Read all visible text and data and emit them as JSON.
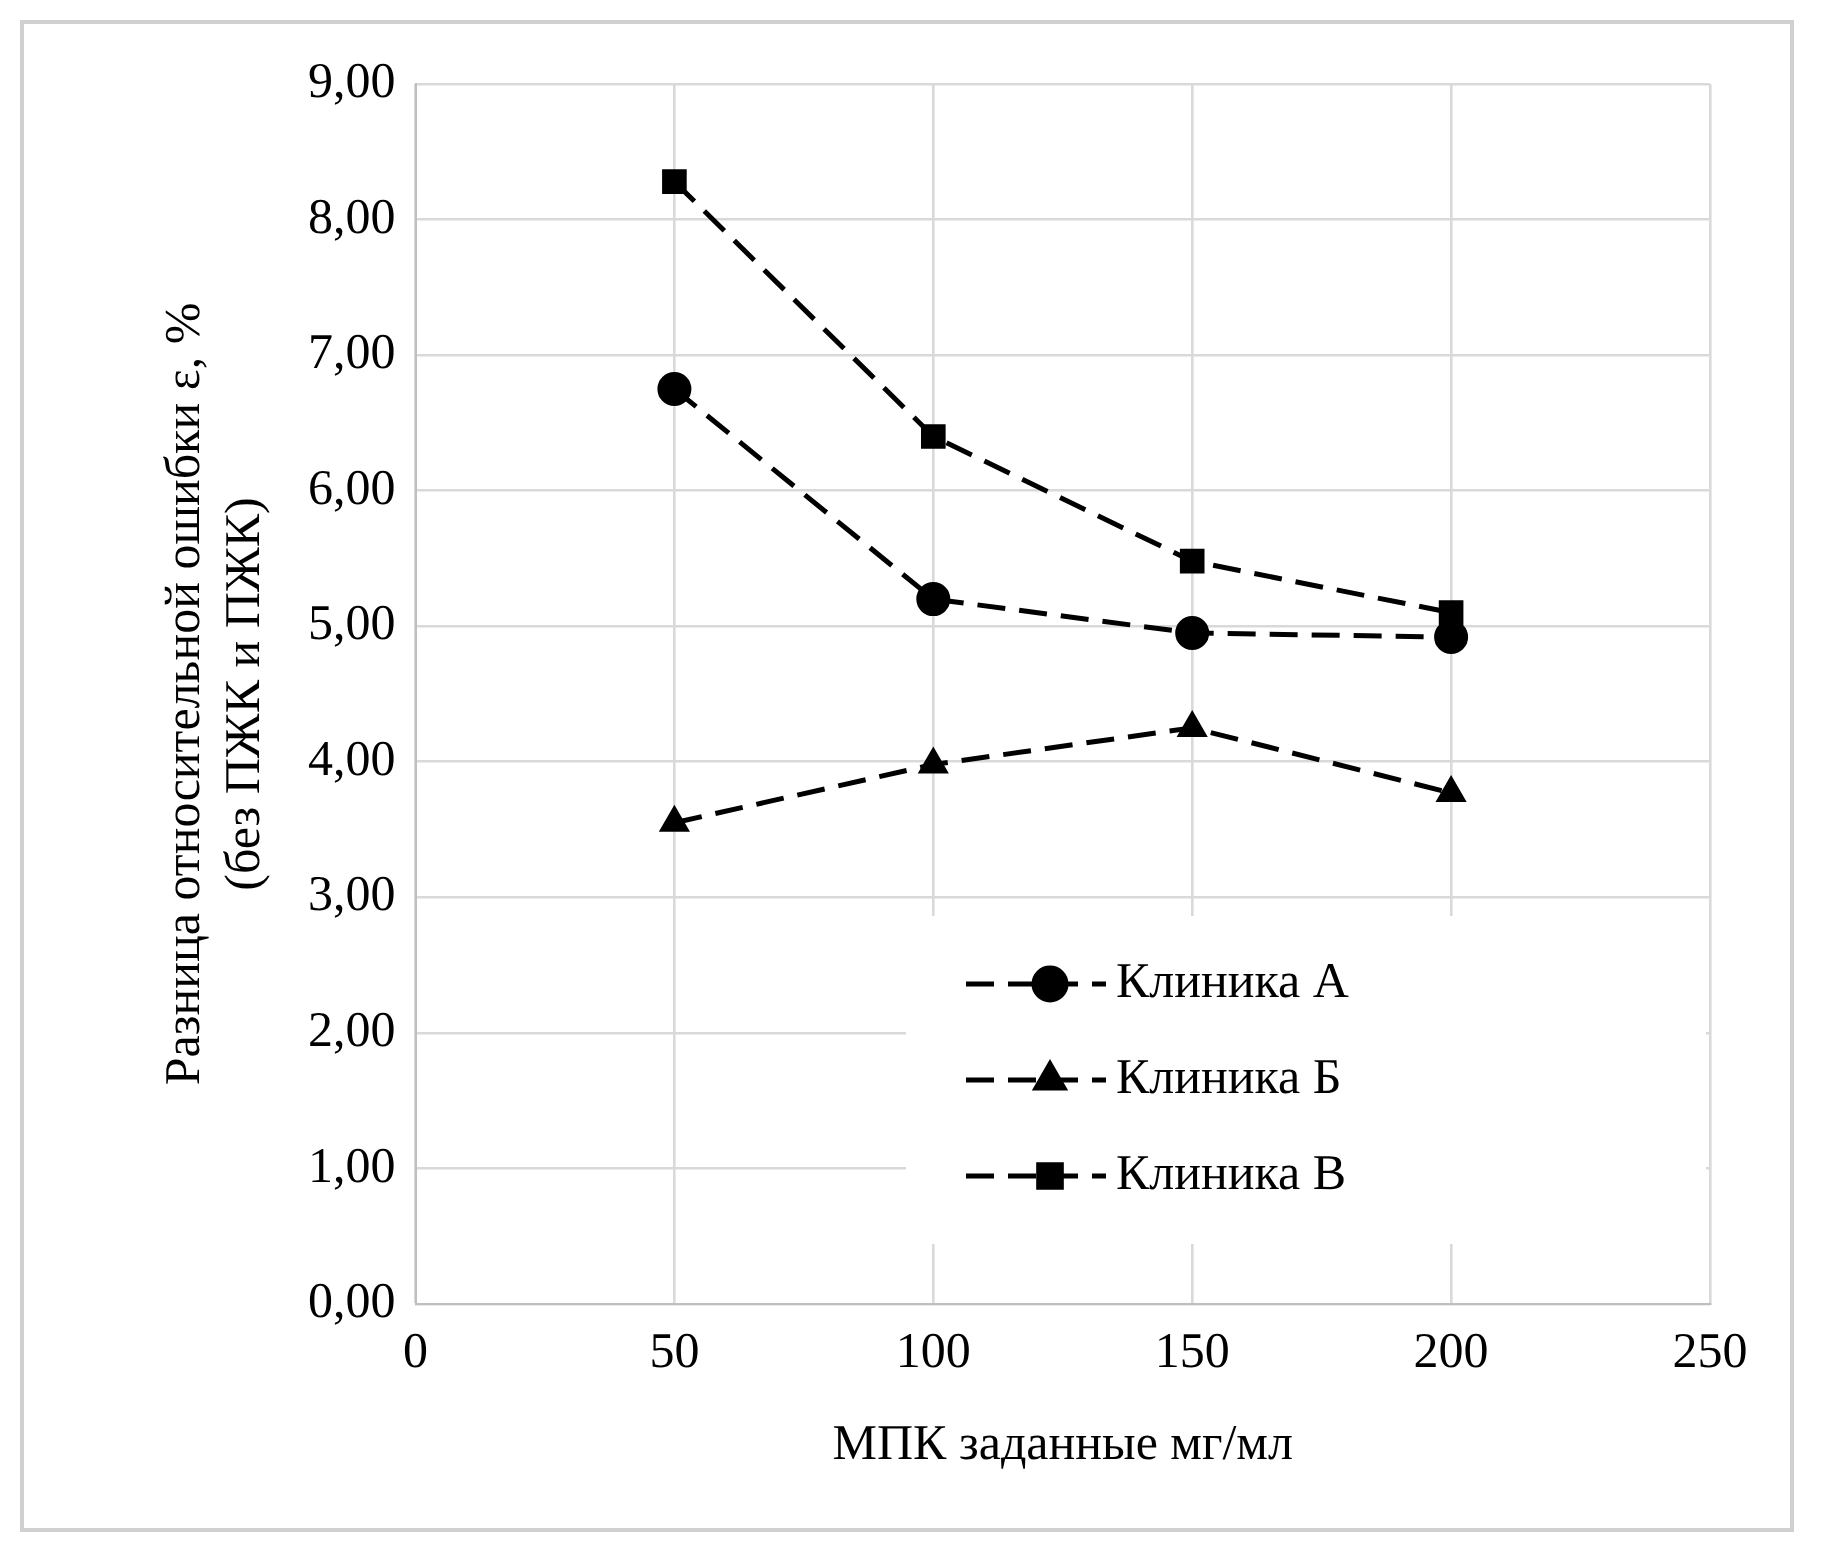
{
  "chart_data": {
    "type": "line",
    "xlabel": "МПК заданные мг/мл",
    "ylabel": "Разница относительной ошибки ε, %\n(без ПЖК и ПЖК)",
    "x": [
      50,
      100,
      150,
      200
    ],
    "series": [
      {
        "name": "Клиника А",
        "color": "#000000",
        "marker": "circle",
        "values": [
          6.75,
          5.2,
          4.95,
          4.92
        ]
      },
      {
        "name": "Клиника Б",
        "color": "#000000",
        "marker": "triangle",
        "values": [
          3.55,
          3.98,
          4.25,
          3.77
        ]
      },
      {
        "name": "Клиника В",
        "color": "#000000",
        "marker": "square",
        "values": [
          8.28,
          6.4,
          5.48,
          5.1
        ]
      }
    ],
    "xlim": [
      0,
      250
    ],
    "xticks": [
      0,
      50,
      100,
      150,
      200,
      250
    ],
    "ylim": [
      0,
      9
    ],
    "yticks": [
      {
        "value": 0,
        "label": "0,00"
      },
      {
        "value": 1,
        "label": "1,00"
      },
      {
        "value": 2,
        "label": "2,00"
      },
      {
        "value": 3,
        "label": "3,00"
      },
      {
        "value": 4,
        "label": "4,00"
      },
      {
        "value": 5,
        "label": "5,00"
      },
      {
        "value": 6,
        "label": "6,00"
      },
      {
        "value": 7,
        "label": "7,00"
      },
      {
        "value": 8,
        "label": "8,00"
      },
      {
        "value": 9,
        "label": "9,00"
      }
    ],
    "grid": true,
    "legend": "bottom right",
    "line_style": "dashed"
  }
}
